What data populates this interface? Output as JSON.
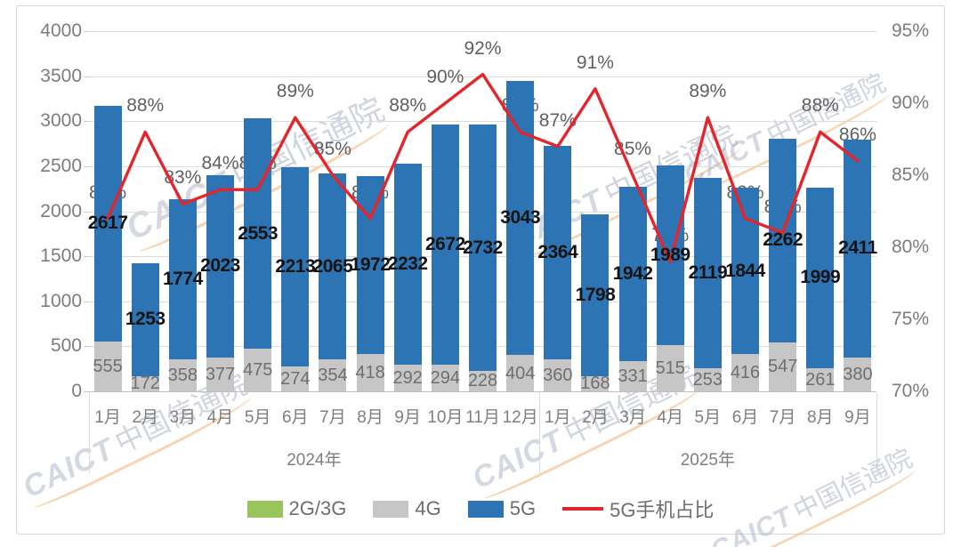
{
  "chart_data": {
    "type": "bar",
    "subtype": "stacked-column-with-percentage-line",
    "title": "",
    "left_axis": {
      "min": 0,
      "max": 4000,
      "ticks": [
        0,
        500,
        1000,
        1500,
        2000,
        2500,
        3000,
        3500,
        4000
      ]
    },
    "right_axis": {
      "min": 70,
      "max": 95,
      "suffix": "%",
      "ticks": [
        70,
        75,
        80,
        85,
        90,
        95
      ]
    },
    "groups": [
      {
        "year": "2024年",
        "months": [
          "1月",
          "2月",
          "3月",
          "4月",
          "5月",
          "6月",
          "7月",
          "8月",
          "9月",
          "10月",
          "11月",
          "12月"
        ]
      },
      {
        "year": "2025年",
        "months": [
          "1月",
          "2月",
          "3月",
          "4月",
          "5月",
          "6月",
          "7月",
          "8月",
          "9月"
        ]
      }
    ],
    "series": [
      {
        "name": "2G/3G",
        "color": "#98c45c",
        "values": []
      },
      {
        "name": "4G",
        "color": "#c6c6c6",
        "values": [
          555,
          172,
          358,
          377,
          475,
          274,
          354,
          418,
          292,
          294,
          228,
          404,
          360,
          168,
          331,
          515,
          253,
          416,
          547,
          261,
          380
        ]
      },
      {
        "name": "5G",
        "color": "#2d74b5",
        "values": [
          2617,
          1253,
          1774,
          2023,
          2553,
          2213,
          2065,
          1972,
          2232,
          2672,
          2732,
          3043,
          2364,
          1798,
          1942,
          1989,
          2119,
          1844,
          2262,
          1999,
          2411
        ]
      }
    ],
    "line_series": {
      "name": "5G手机占比",
      "color": "#e2262b",
      "values_pct": [
        82,
        88,
        83,
        84,
        84,
        89,
        85,
        82,
        88,
        90,
        92,
        88,
        87,
        91,
        85,
        79,
        89,
        82,
        81,
        88,
        86
      ]
    },
    "legend": [
      "2G/3G",
      "4G",
      "5G",
      "5G手机占比"
    ],
    "legend_position": "bottom",
    "grid": true
  },
  "watermark": {
    "latin": "CAICT",
    "cjk": "中国信通院"
  }
}
